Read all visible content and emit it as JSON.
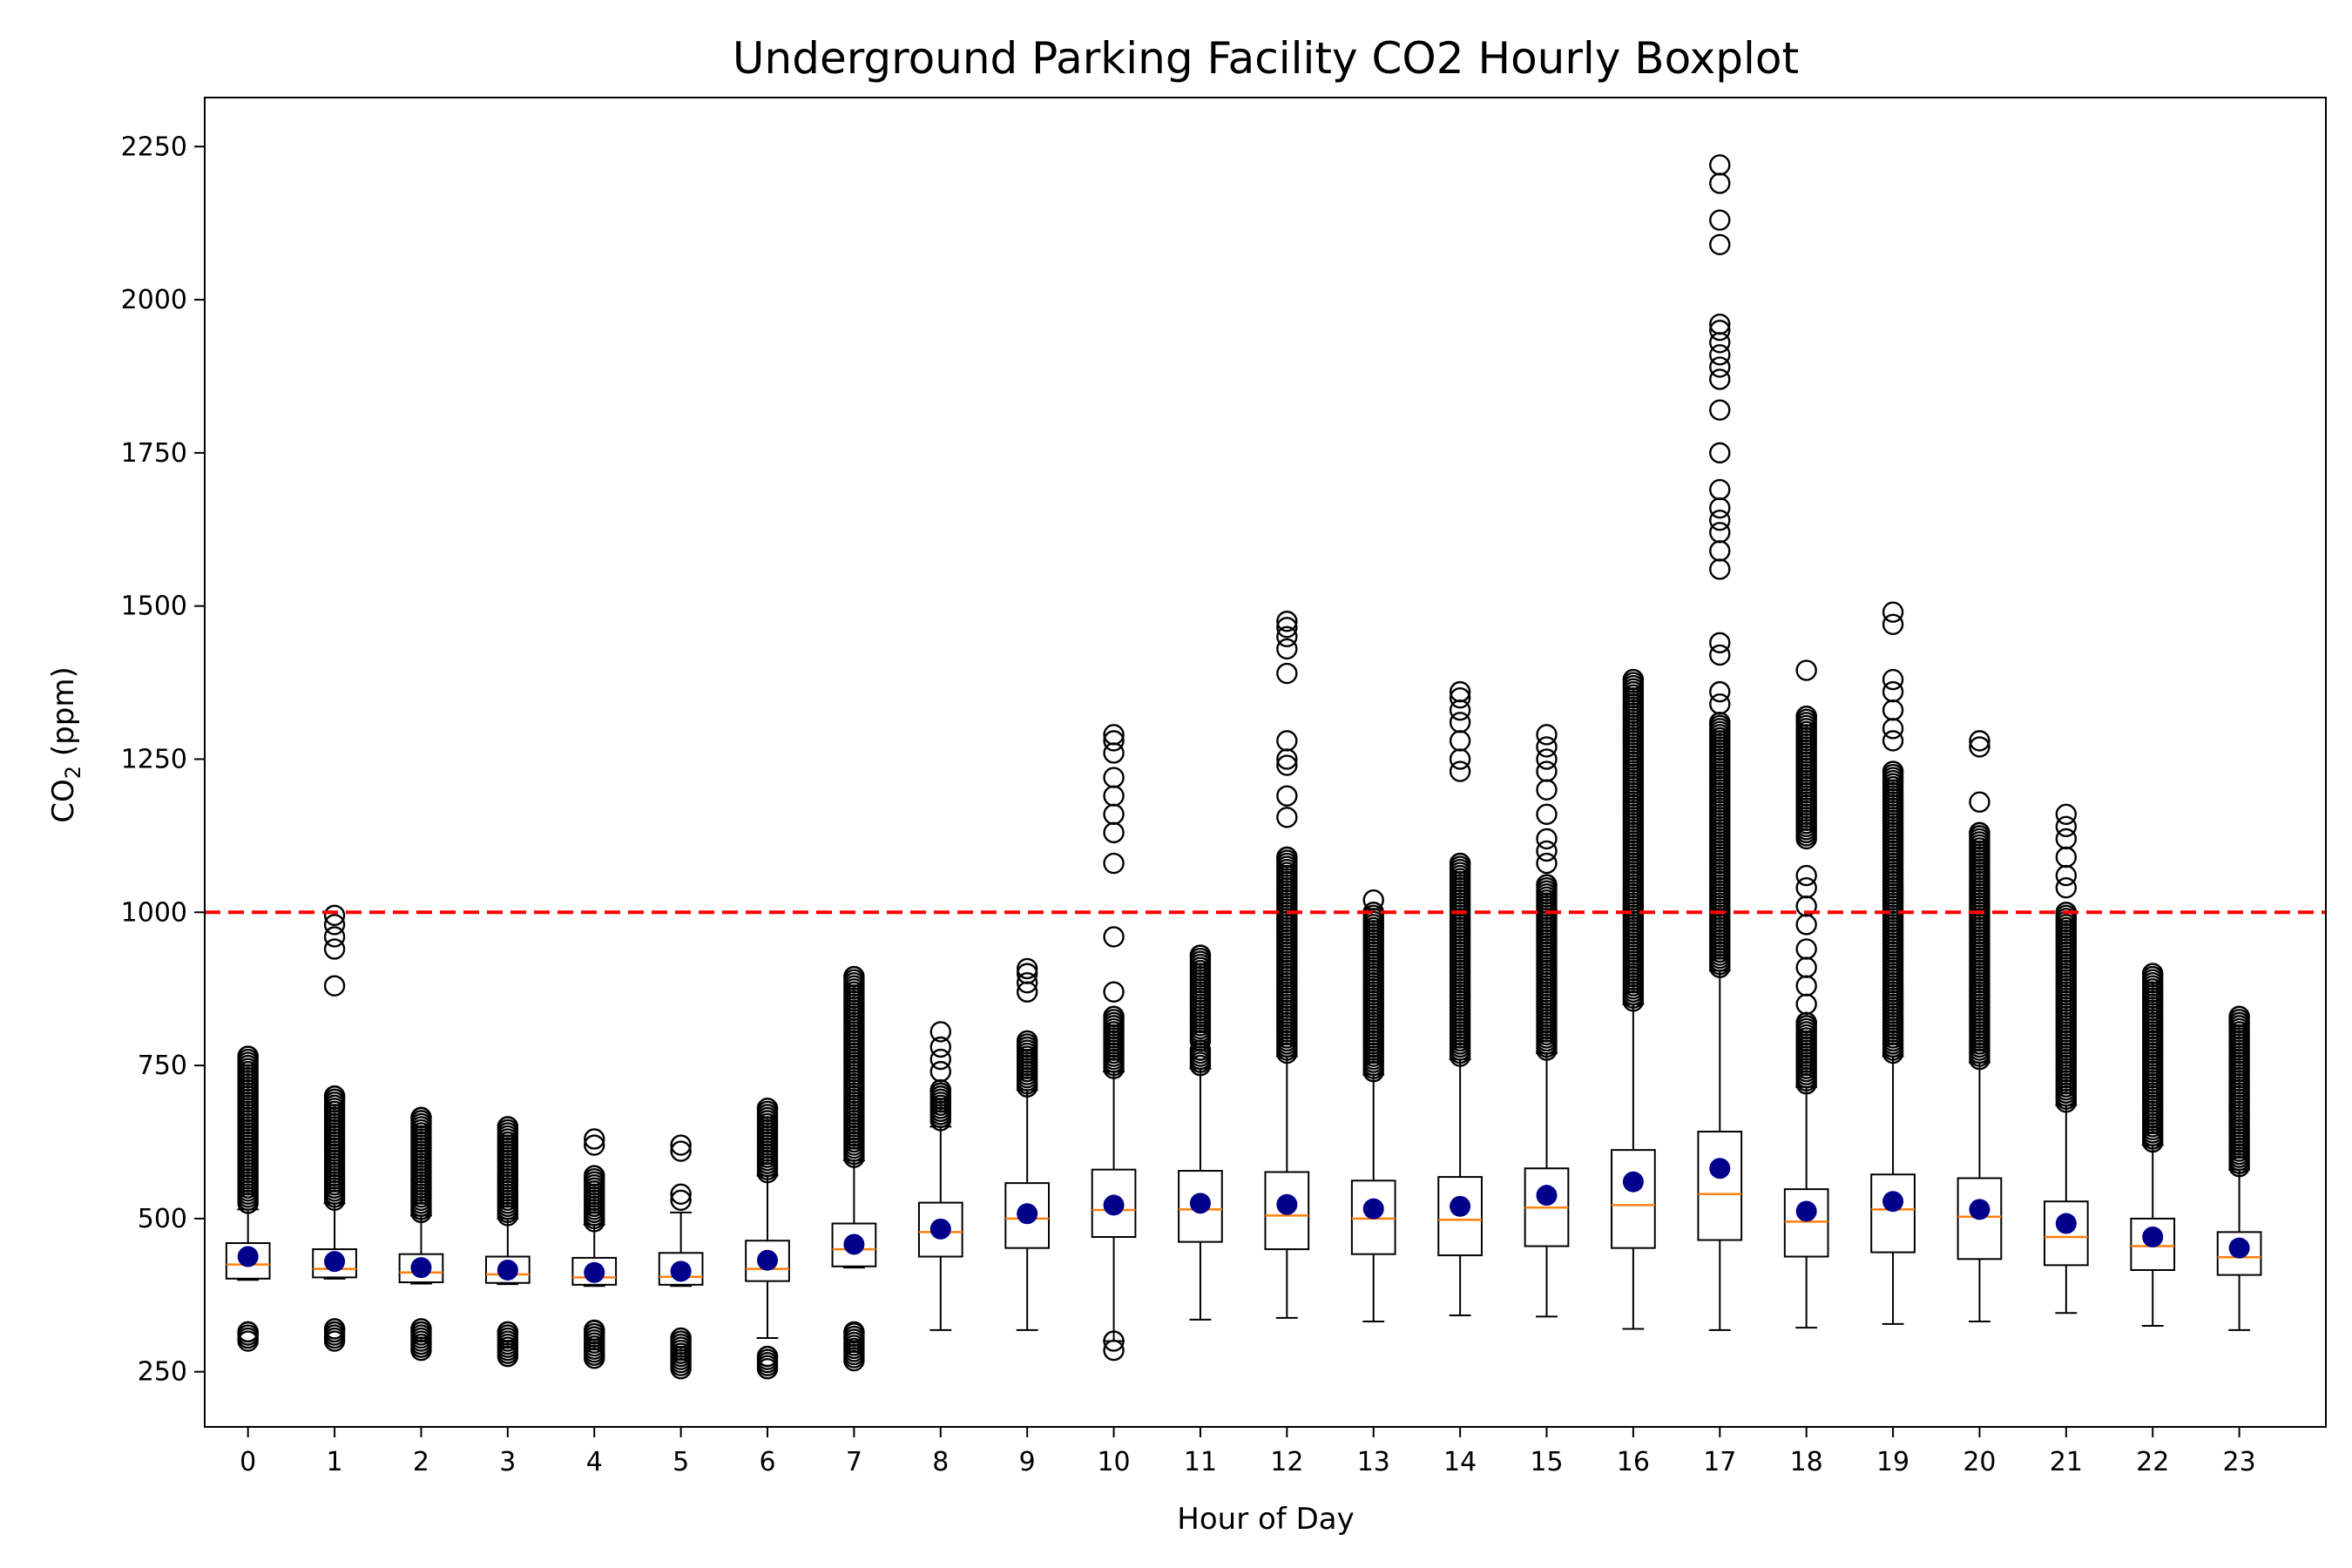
{
  "chart_data": {
    "type": "boxplot",
    "title": "Underground Parking Facility CO2 Hourly Boxplot",
    "xlabel": "Hour of Day",
    "ylabel_main": "CO",
    "ylabel_sub": "2",
    "ylabel_unit": " (ppm)",
    "categories": [
      "0",
      "1",
      "2",
      "3",
      "4",
      "5",
      "6",
      "7",
      "8",
      "9",
      "10",
      "11",
      "12",
      "13",
      "14",
      "15",
      "16",
      "17",
      "18",
      "19",
      "20",
      "21",
      "22",
      "23"
    ],
    "y_ticks": [
      250,
      500,
      750,
      1000,
      1250,
      1500,
      1750,
      2000,
      2250
    ],
    "ylim": [
      160,
      2330
    ],
    "threshold": {
      "value": 1000,
      "color": "#ff0000",
      "style": "dashed"
    },
    "colors": {
      "box": "#000000",
      "median": "#ff7f0e",
      "mean": "#00008b",
      "flier": "#000000"
    },
    "boxes": [
      {
        "hour": "0",
        "whislo": 400,
        "q1": 402,
        "med": 425,
        "q3": 460,
        "whishi": 515,
        "mean": 438,
        "fliers_high": [
          [
            525,
            765
          ]
        ],
        "fliers_low": [
          [
            300,
            315
          ]
        ]
      },
      {
        "hour": "1",
        "whislo": 402,
        "q1": 404,
        "med": 418,
        "q3": 450,
        "whishi": 525,
        "mean": 430,
        "fliers_high": [
          [
            530,
            700
          ],
          880,
          940,
          960,
          980,
          995
        ],
        "fliers_low": [
          [
            300,
            320
          ]
        ]
      },
      {
        "hour": "2",
        "whislo": 394,
        "q1": 396,
        "med": 412,
        "q3": 442,
        "whishi": 505,
        "mean": 420,
        "fliers_high": [
          [
            510,
            665
          ]
        ],
        "fliers_low": [
          [
            285,
            320
          ]
        ]
      },
      {
        "hour": "3",
        "whislo": 393,
        "q1": 395,
        "med": 409,
        "q3": 438,
        "whishi": 500,
        "mean": 416,
        "fliers_high": [
          [
            505,
            650
          ]
        ],
        "fliers_low": [
          [
            275,
            315
          ]
        ]
      },
      {
        "hour": "4",
        "whislo": 390,
        "q1": 392,
        "med": 404,
        "q3": 436,
        "whishi": 490,
        "mean": 412,
        "fliers_high": [
          [
            495,
            570
          ],
          620,
          630
        ],
        "fliers_low": [
          [
            272,
            318
          ]
        ]
      },
      {
        "hour": "5",
        "whislo": 390,
        "q1": 392,
        "med": 405,
        "q3": 444,
        "whishi": 510,
        "mean": 414,
        "fliers_high": [
          530,
          540,
          610,
          620
        ],
        "fliers_low": [
          [
            255,
            305
          ]
        ]
      },
      {
        "hour": "6",
        "whislo": 305,
        "q1": 398,
        "med": 418,
        "q3": 464,
        "whishi": 570,
        "mean": 432,
        "fliers_high": [
          [
            575,
            680
          ]
        ],
        "fliers_low": [
          [
            255,
            275
          ]
        ]
      },
      {
        "hour": "7",
        "whislo": 420,
        "q1": 422,
        "med": 450,
        "q3": 492,
        "whishi": 595,
        "mean": 458,
        "fliers_high": [
          [
            600,
            895
          ]
        ],
        "fliers_low": [
          [
            268,
            315
          ]
        ]
      },
      {
        "hour": "8",
        "whislo": 318,
        "q1": 438,
        "med": 478,
        "q3": 526,
        "whishi": 650,
        "mean": 483,
        "fliers_high": [
          [
            660,
            710
          ],
          740,
          760,
          780,
          805
        ],
        "fliers_low": []
      },
      {
        "hour": "9",
        "whislo": 318,
        "q1": 452,
        "med": 500,
        "q3": 558,
        "whishi": 710,
        "mean": 508,
        "fliers_high": [
          [
            715,
            790
          ],
          870,
          885,
          900,
          908
        ],
        "fliers_low": []
      },
      {
        "hour": "10",
        "whislo": 300,
        "q1": 470,
        "med": 514,
        "q3": 580,
        "whishi": 740,
        "mean": 522,
        "fliers_high": [
          [
            745,
            830
          ],
          870,
          960,
          1080,
          1130,
          1160,
          1190,
          1220,
          1260,
          1280,
          1290
        ],
        "fliers_low": [
          285,
          300
        ]
      },
      {
        "hour": "11",
        "whislo": 335,
        "q1": 462,
        "med": 515,
        "q3": 578,
        "whishi": 745,
        "mean": 525,
        "fliers_high": [
          [
            750,
            775
          ],
          [
            790,
            930
          ]
        ],
        "fliers_low": []
      },
      {
        "hour": "12",
        "whislo": 338,
        "q1": 450,
        "med": 505,
        "q3": 576,
        "whishi": 765,
        "mean": 523,
        "fliers_high": [
          [
            770,
            1090
          ],
          1155,
          1190,
          1240,
          1250,
          1280,
          1390,
          1430,
          1450,
          1465,
          1475
        ],
        "fliers_low": []
      },
      {
        "hour": "13",
        "whislo": 332,
        "q1": 442,
        "med": 500,
        "q3": 562,
        "whishi": 735,
        "mean": 516,
        "fliers_high": [
          [
            740,
            1000
          ],
          1020
        ],
        "fliers_low": []
      },
      {
        "hour": "14",
        "whislo": 342,
        "q1": 440,
        "med": 498,
        "q3": 568,
        "whishi": 760,
        "mean": 520,
        "fliers_high": [
          [
            765,
            1080
          ],
          1230,
          1250,
          1280,
          1310,
          1330,
          1350,
          1360
        ],
        "fliers_low": []
      },
      {
        "hour": "15",
        "whislo": 340,
        "q1": 455,
        "med": 518,
        "q3": 582,
        "whishi": 770,
        "mean": 538,
        "fliers_high": [
          [
            775,
            1045
          ],
          1080,
          1100,
          1120,
          1160,
          1200,
          1230,
          1250,
          1270,
          1290
        ],
        "fliers_low": []
      },
      {
        "hour": "16",
        "whislo": 320,
        "q1": 452,
        "med": 522,
        "q3": 612,
        "whishi": 850,
        "mean": 560,
        "fliers_high": [
          [
            855,
            1380
          ]
        ],
        "fliers_low": []
      },
      {
        "hour": "17",
        "whislo": 318,
        "q1": 465,
        "med": 540,
        "q3": 642,
        "whishi": 905,
        "mean": 582,
        "fliers_high": [
          [
            910,
            1310
          ],
          1340,
          1360,
          1420,
          1440,
          1560,
          1590,
          1620,
          1640,
          1660,
          1690,
          1750,
          1820,
          1870,
          1890,
          1910,
          1930,
          1950,
          1960,
          2090,
          2130,
          2190,
          2220
        ],
        "fliers_low": []
      },
      {
        "hour": "18",
        "whislo": 322,
        "q1": 438,
        "med": 495,
        "q3": 548,
        "whishi": 715,
        "mean": 512,
        "fliers_high": [
          [
            720,
            820
          ],
          850,
          880,
          910,
          940,
          980,
          1010,
          1040,
          1060,
          [
            1120,
            1320
          ],
          1395
        ],
        "fliers_low": []
      },
      {
        "hour": "19",
        "whislo": 328,
        "q1": 445,
        "med": 515,
        "q3": 572,
        "whishi": 765,
        "mean": 528,
        "fliers_high": [
          [
            770,
            1230
          ],
          1280,
          1300,
          1330,
          1360,
          1380,
          1470,
          1490
        ],
        "fliers_low": []
      },
      {
        "hour": "20",
        "whislo": 332,
        "q1": 434,
        "med": 503,
        "q3": 566,
        "whishi": 755,
        "mean": 515,
        "fliers_high": [
          [
            760,
            1130
          ],
          1180,
          1270,
          1280
        ],
        "fliers_low": []
      },
      {
        "hour": "21",
        "whislo": 346,
        "q1": 424,
        "med": 470,
        "q3": 528,
        "whishi": 685,
        "mean": 492,
        "fliers_high": [
          [
            690,
            1000
          ],
          1040,
          1060,
          1090,
          1120,
          1140,
          1160
        ],
        "fliers_low": []
      },
      {
        "hour": "22",
        "whislo": 325,
        "q1": 416,
        "med": 455,
        "q3": 500,
        "whishi": 620,
        "mean": 470,
        "fliers_high": [
          [
            625,
            900
          ]
        ],
        "fliers_low": []
      },
      {
        "hour": "23",
        "whislo": 318,
        "q1": 408,
        "med": 437,
        "q3": 478,
        "whishi": 580,
        "mean": 452,
        "fliers_high": [
          [
            585,
            830
          ]
        ],
        "fliers_low": []
      }
    ]
  }
}
